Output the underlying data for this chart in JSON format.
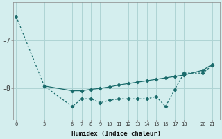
{
  "xlabel": "Humidex (Indice chaleur)",
  "background_color": "#d4eeee",
  "grid_color": "#aed4d4",
  "line_color": "#1a6b6b",
  "line1_x": [
    0,
    3,
    6,
    7,
    8,
    9,
    10,
    11,
    12,
    13,
    14,
    15,
    16,
    17,
    18,
    20,
    21
  ],
  "line1_y": [
    -6.5,
    -7.95,
    -8.38,
    -8.22,
    -8.22,
    -8.3,
    -8.25,
    -8.22,
    -8.22,
    -8.22,
    -8.22,
    -8.17,
    -8.38,
    -8.02,
    -7.68,
    -7.68,
    -7.52
  ],
  "line2_x": [
    3,
    6,
    7,
    8,
    9,
    10,
    11,
    12,
    13,
    14,
    15,
    16,
    17,
    18,
    20,
    21
  ],
  "line2_y": [
    -7.95,
    -8.05,
    -8.05,
    -8.02,
    -8.0,
    -7.97,
    -7.93,
    -7.9,
    -7.87,
    -7.84,
    -7.81,
    -7.78,
    -7.75,
    -7.72,
    -7.62,
    -7.5
  ],
  "yticks": [
    -8,
    -7
  ],
  "ytick_labels": [
    "-8",
    "-7"
  ],
  "xticks": [
    0,
    3,
    6,
    7,
    8,
    9,
    10,
    11,
    12,
    13,
    14,
    15,
    16,
    17,
    18,
    20,
    21
  ],
  "ylim": [
    -8.65,
    -6.2
  ],
  "xlim": [
    -0.3,
    21.8
  ]
}
